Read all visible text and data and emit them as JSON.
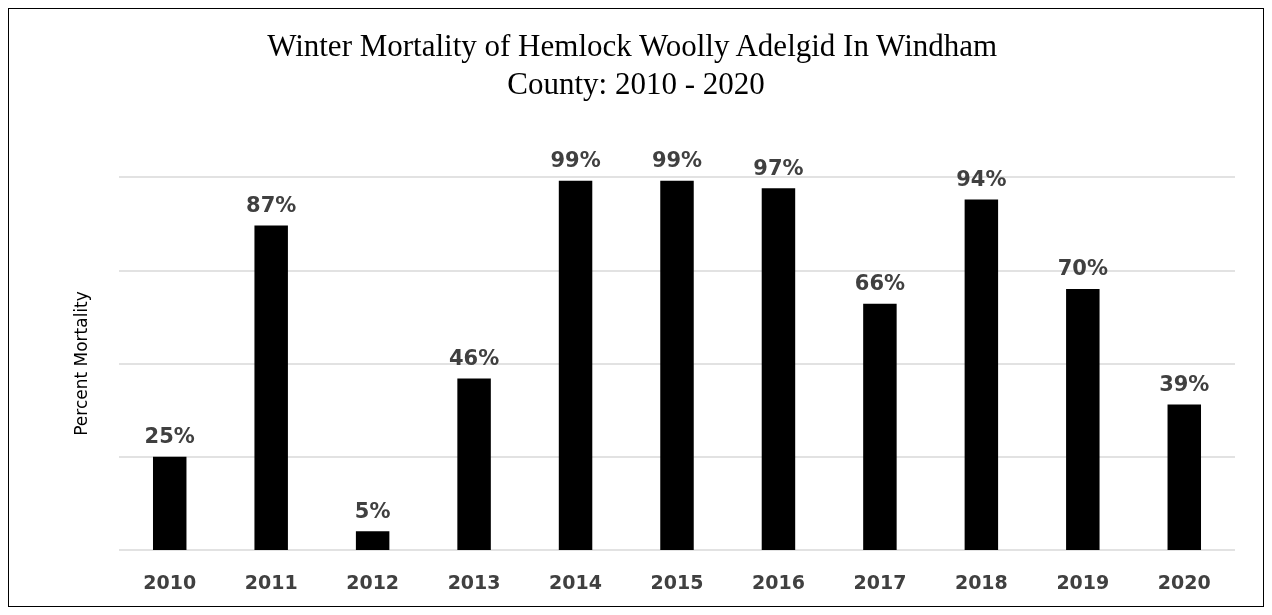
{
  "chart_data": {
    "type": "bar",
    "title": "Winter Mortality of Hemlock Woolly Adelgid In Windham County: 2010 - 2020",
    "ylabel": "Percent Mortality",
    "categories": [
      "2010",
      "2011",
      "2012",
      "2013",
      "2014",
      "2015",
      "2016",
      "2017",
      "2018",
      "2019",
      "2020"
    ],
    "values": [
      25,
      87,
      5,
      46,
      99,
      99,
      97,
      66,
      94,
      70,
      39
    ],
    "value_labels": [
      "25%",
      "87%",
      "5%",
      "46%",
      "99%",
      "99%",
      "97%",
      "66%",
      "94%",
      "70%",
      "39%"
    ],
    "color": "#000000",
    "ylim": [
      0,
      100
    ],
    "yticks": [
      {
        "value": 0,
        "label": null
      },
      {
        "value": 25,
        "label": null
      },
      {
        "value": 50,
        "label": null
      },
      {
        "value": 75,
        "label": null
      },
      {
        "value": 100,
        "label": null
      }
    ],
    "grid": "y"
  }
}
